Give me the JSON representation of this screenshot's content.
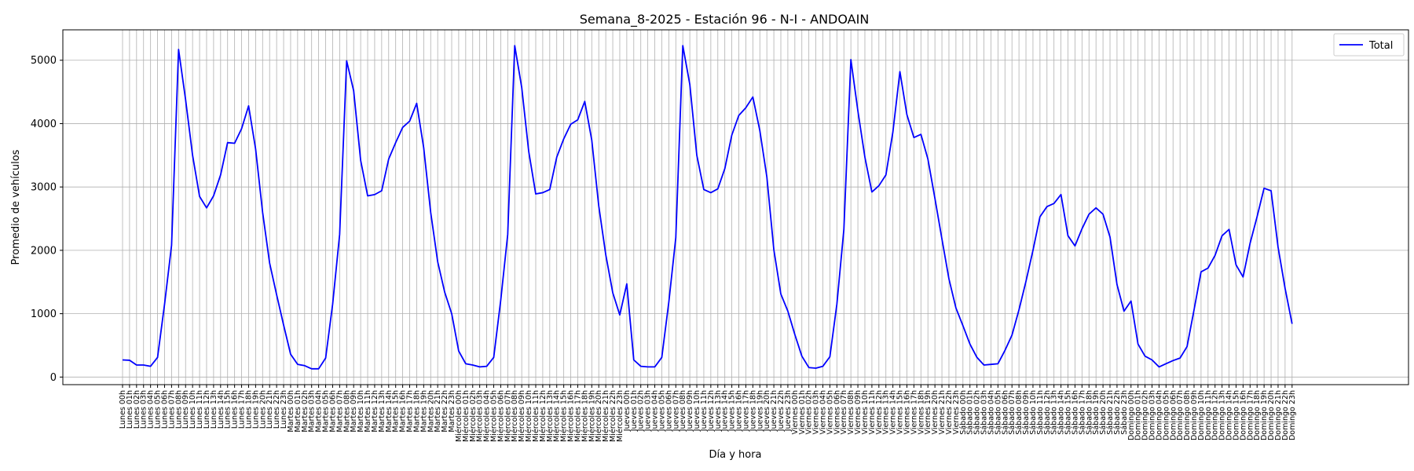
{
  "chart_data": {
    "type": "line",
    "title": "Semana_8-2025 - Estación 96 - N-I  - ANDOAIN",
    "xlabel": "Día y hora",
    "ylabel": "Promedio de vehículos",
    "ylim": [
      -120,
      5480
    ],
    "yticks": [
      0,
      1000,
      2000,
      3000,
      4000,
      5000
    ],
    "grid": true,
    "legend_position": "top-right",
    "days": [
      "Lunes",
      "Martes",
      "Miércoles",
      "Jueves",
      "Viernes",
      "Sábado",
      "Domingo"
    ],
    "hours": [
      "00h",
      "01h",
      "02h",
      "03h",
      "04h",
      "05h",
      "06h",
      "07h",
      "08h",
      "09h",
      "10h",
      "11h",
      "12h",
      "13h",
      "14h",
      "15h",
      "16h",
      "17h",
      "18h",
      "19h",
      "20h",
      "21h",
      "22h",
      "23h"
    ],
    "series": [
      {
        "name": "Total",
        "color": "#0000ff",
        "values": [
          270,
          265,
          190,
          190,
          170,
          310,
          1150,
          2080,
          5170,
          4380,
          3500,
          2850,
          2670,
          2860,
          3190,
          3700,
          3690,
          3920,
          4280,
          3600,
          2600,
          1800,
          1300,
          820,
          360,
          200,
          180,
          130,
          130,
          300,
          1150,
          2250,
          4990,
          4520,
          3420,
          2860,
          2880,
          2940,
          3440,
          3700,
          3940,
          4040,
          4320,
          3620,
          2600,
          1820,
          1340,
          1000,
          410,
          210,
          190,
          160,
          170,
          310,
          1210,
          2250,
          5230,
          4570,
          3560,
          2890,
          2910,
          2960,
          3470,
          3760,
          3990,
          4060,
          4350,
          3740,
          2700,
          1930,
          1330,
          980,
          1470,
          270,
          170,
          160,
          160,
          310,
          1180,
          2200,
          5230,
          4620,
          3500,
          2960,
          2910,
          2970,
          3290,
          3820,
          4130,
          4250,
          4420,
          3890,
          3160,
          2010,
          1310,
          1040,
          670,
          330,
          150,
          140,
          170,
          320,
          1150,
          2330,
          5010,
          4200,
          3470,
          2920,
          3020,
          3190,
          3870,
          4820,
          4140,
          3780,
          3830,
          3440,
          2820,
          2180,
          1550,
          1090,
          810,
          520,
          310,
          190,
          200,
          210,
          420,
          660,
          1060,
          1510,
          2000,
          2530,
          2690,
          2740,
          2880,
          2230,
          2070,
          2340,
          2570,
          2670,
          2570,
          2210,
          1460,
          1040,
          1200,
          520,
          330,
          270,
          160,
          210,
          260,
          300,
          480,
          1060,
          1660,
          1720,
          1920,
          2230,
          2330,
          1770,
          1580,
          2110,
          2530,
          2980,
          2940,
          2050,
          1400,
          840
        ]
      }
    ]
  }
}
